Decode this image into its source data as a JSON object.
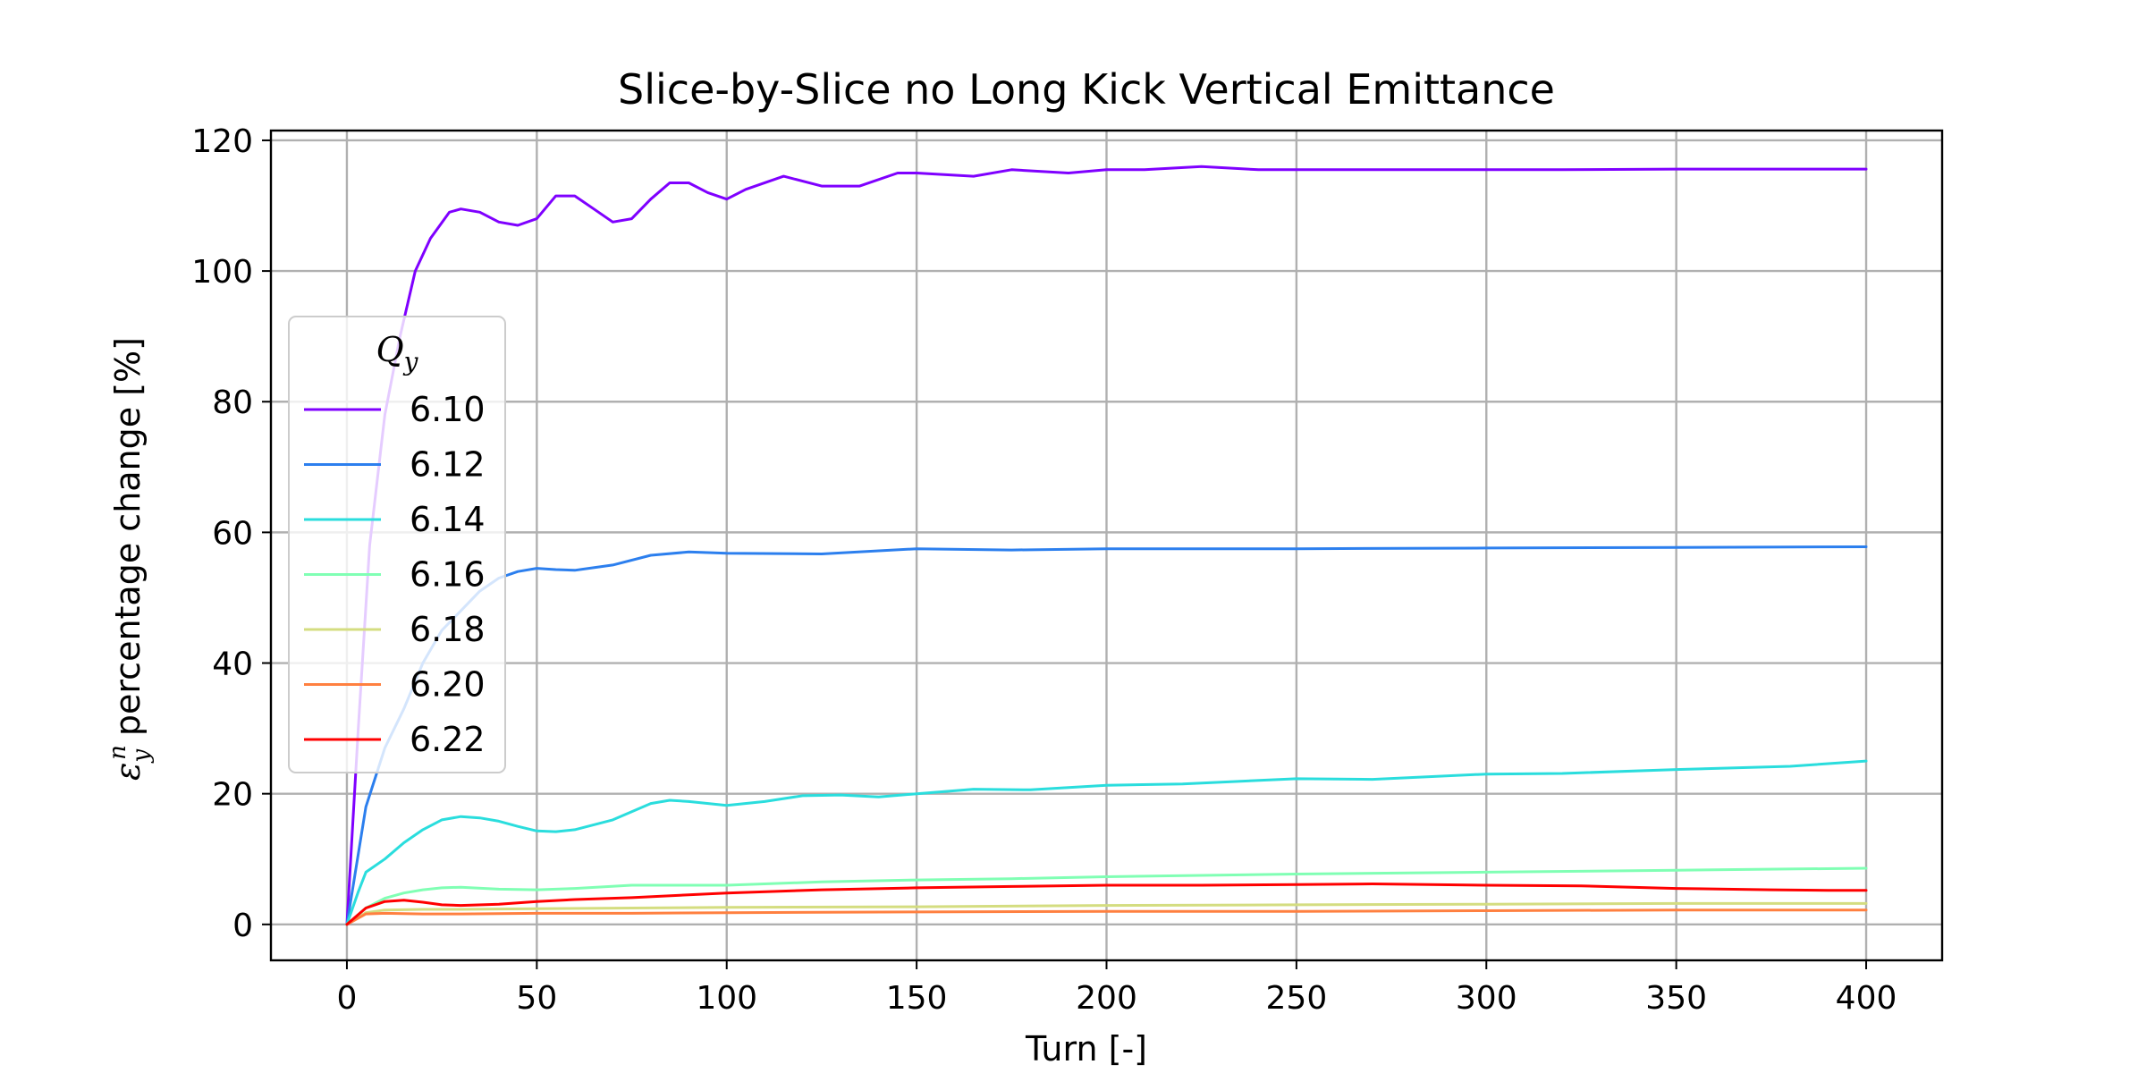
{
  "chart_data": {
    "type": "line",
    "title": "Slice-by-Slice no Long Kick Vertical Emittance",
    "xlabel": "Turn [-]",
    "ylabel_symbol": "ε",
    "ylabel_sub": "y",
    "ylabel_sup": "n",
    "ylabel": "percentage change [%]",
    "xlim": [
      -20,
      420
    ],
    "ylim": [
      -5.5,
      121.5
    ],
    "xticks": [
      0,
      50,
      100,
      150,
      200,
      250,
      300,
      350,
      400
    ],
    "yticks": [
      0,
      20,
      40,
      60,
      80,
      100,
      120
    ],
    "grid": true,
    "legend": {
      "title_main": "Q",
      "title_sub": "y",
      "placement": "center-left"
    },
    "series": [
      {
        "name": "6.10",
        "color": "#7f00ff",
        "points": [
          [
            0,
            0
          ],
          [
            3,
            30
          ],
          [
            6,
            58
          ],
          [
            10,
            78
          ],
          [
            14,
            90
          ],
          [
            18,
            100
          ],
          [
            22,
            105
          ],
          [
            27,
            109
          ],
          [
            30,
            109.5
          ],
          [
            35,
            109
          ],
          [
            40,
            107.5
          ],
          [
            45,
            107
          ],
          [
            50,
            108
          ],
          [
            55,
            111.5
          ],
          [
            60,
            111.5
          ],
          [
            65,
            109.5
          ],
          [
            70,
            107.5
          ],
          [
            75,
            108
          ],
          [
            80,
            111
          ],
          [
            85,
            113.5
          ],
          [
            90,
            113.5
          ],
          [
            95,
            112
          ],
          [
            100,
            111
          ],
          [
            105,
            112.5
          ],
          [
            115,
            114.5
          ],
          [
            125,
            113
          ],
          [
            135,
            113
          ],
          [
            145,
            115
          ],
          [
            150,
            115
          ],
          [
            165,
            114.5
          ],
          [
            175,
            115.5
          ],
          [
            190,
            115
          ],
          [
            200,
            115.5
          ],
          [
            210,
            115.5
          ],
          [
            225,
            116
          ],
          [
            240,
            115.5
          ],
          [
            250,
            115.5
          ],
          [
            270,
            115.5
          ],
          [
            300,
            115.5
          ],
          [
            320,
            115.5
          ],
          [
            350,
            115.6
          ],
          [
            380,
            115.6
          ],
          [
            400,
            115.6
          ]
        ]
      },
      {
        "name": "6.12",
        "color": "#2c7fee",
        "points": [
          [
            0,
            0
          ],
          [
            5,
            18
          ],
          [
            10,
            27
          ],
          [
            15,
            33
          ],
          [
            20,
            40
          ],
          [
            25,
            45
          ],
          [
            30,
            48
          ],
          [
            35,
            51
          ],
          [
            40,
            53
          ],
          [
            45,
            54
          ],
          [
            50,
            54.5
          ],
          [
            55,
            54.3
          ],
          [
            60,
            54.2
          ],
          [
            70,
            55
          ],
          [
            80,
            56.5
          ],
          [
            90,
            57
          ],
          [
            100,
            56.8
          ],
          [
            125,
            56.7
          ],
          [
            150,
            57.5
          ],
          [
            175,
            57.3
          ],
          [
            200,
            57.5
          ],
          [
            250,
            57.5
          ],
          [
            300,
            57.6
          ],
          [
            350,
            57.7
          ],
          [
            400,
            57.8
          ]
        ]
      },
      {
        "name": "6.14",
        "color": "#2adddd",
        "points": [
          [
            0,
            0
          ],
          [
            3,
            5
          ],
          [
            5,
            8
          ],
          [
            10,
            10
          ],
          [
            15,
            12.5
          ],
          [
            20,
            14.5
          ],
          [
            25,
            16
          ],
          [
            30,
            16.5
          ],
          [
            35,
            16.3
          ],
          [
            40,
            15.8
          ],
          [
            45,
            15
          ],
          [
            50,
            14.3
          ],
          [
            55,
            14.2
          ],
          [
            60,
            14.5
          ],
          [
            70,
            16
          ],
          [
            80,
            18.5
          ],
          [
            85,
            19
          ],
          [
            90,
            18.8
          ],
          [
            100,
            18.2
          ],
          [
            110,
            18.8
          ],
          [
            120,
            19.7
          ],
          [
            130,
            19.8
          ],
          [
            140,
            19.5
          ],
          [
            150,
            20
          ],
          [
            165,
            20.7
          ],
          [
            180,
            20.6
          ],
          [
            200,
            21.3
          ],
          [
            220,
            21.5
          ],
          [
            250,
            22.3
          ],
          [
            270,
            22.2
          ],
          [
            300,
            23
          ],
          [
            320,
            23.1
          ],
          [
            350,
            23.7
          ],
          [
            380,
            24.2
          ],
          [
            400,
            25
          ]
        ]
      },
      {
        "name": "6.16",
        "color": "#80ffb4",
        "points": [
          [
            0,
            0
          ],
          [
            5,
            2.5
          ],
          [
            10,
            4
          ],
          [
            15,
            4.8
          ],
          [
            20,
            5.3
          ],
          [
            25,
            5.6
          ],
          [
            30,
            5.7
          ],
          [
            40,
            5.4
          ],
          [
            50,
            5.3
          ],
          [
            60,
            5.5
          ],
          [
            75,
            6
          ],
          [
            100,
            6
          ],
          [
            125,
            6.5
          ],
          [
            150,
            6.8
          ],
          [
            175,
            7
          ],
          [
            200,
            7.3
          ],
          [
            250,
            7.7
          ],
          [
            300,
            8
          ],
          [
            350,
            8.3
          ],
          [
            400,
            8.6
          ]
        ]
      },
      {
        "name": "6.18",
        "color": "#d4dd80",
        "points": [
          [
            0,
            0
          ],
          [
            5,
            1.8
          ],
          [
            10,
            2.2
          ],
          [
            20,
            2.3
          ],
          [
            30,
            2.3
          ],
          [
            50,
            2.4
          ],
          [
            75,
            2.5
          ],
          [
            100,
            2.6
          ],
          [
            150,
            2.7
          ],
          [
            200,
            2.9
          ],
          [
            250,
            3
          ],
          [
            300,
            3.1
          ],
          [
            350,
            3.2
          ],
          [
            400,
            3.2
          ]
        ]
      },
      {
        "name": "6.20",
        "color": "#ff8040",
        "points": [
          [
            0,
            0
          ],
          [
            5,
            1.6
          ],
          [
            10,
            1.7
          ],
          [
            20,
            1.6
          ],
          [
            30,
            1.6
          ],
          [
            50,
            1.7
          ],
          [
            75,
            1.7
          ],
          [
            100,
            1.8
          ],
          [
            150,
            1.9
          ],
          [
            200,
            2
          ],
          [
            250,
            2
          ],
          [
            300,
            2.1
          ],
          [
            350,
            2.2
          ],
          [
            400,
            2.2
          ]
        ]
      },
      {
        "name": "6.22",
        "color": "#ff0000",
        "points": [
          [
            0,
            0
          ],
          [
            5,
            2.5
          ],
          [
            10,
            3.5
          ],
          [
            15,
            3.7
          ],
          [
            20,
            3.4
          ],
          [
            25,
            3
          ],
          [
            30,
            2.9
          ],
          [
            40,
            3.1
          ],
          [
            50,
            3.5
          ],
          [
            60,
            3.8
          ],
          [
            75,
            4.1
          ],
          [
            100,
            4.8
          ],
          [
            125,
            5.3
          ],
          [
            150,
            5.6
          ],
          [
            175,
            5.8
          ],
          [
            200,
            6
          ],
          [
            225,
            6
          ],
          [
            250,
            6.1
          ],
          [
            270,
            6.2
          ],
          [
            300,
            6
          ],
          [
            325,
            5.9
          ],
          [
            350,
            5.5
          ],
          [
            375,
            5.3
          ],
          [
            390,
            5.2
          ],
          [
            400,
            5.2
          ]
        ]
      }
    ]
  }
}
